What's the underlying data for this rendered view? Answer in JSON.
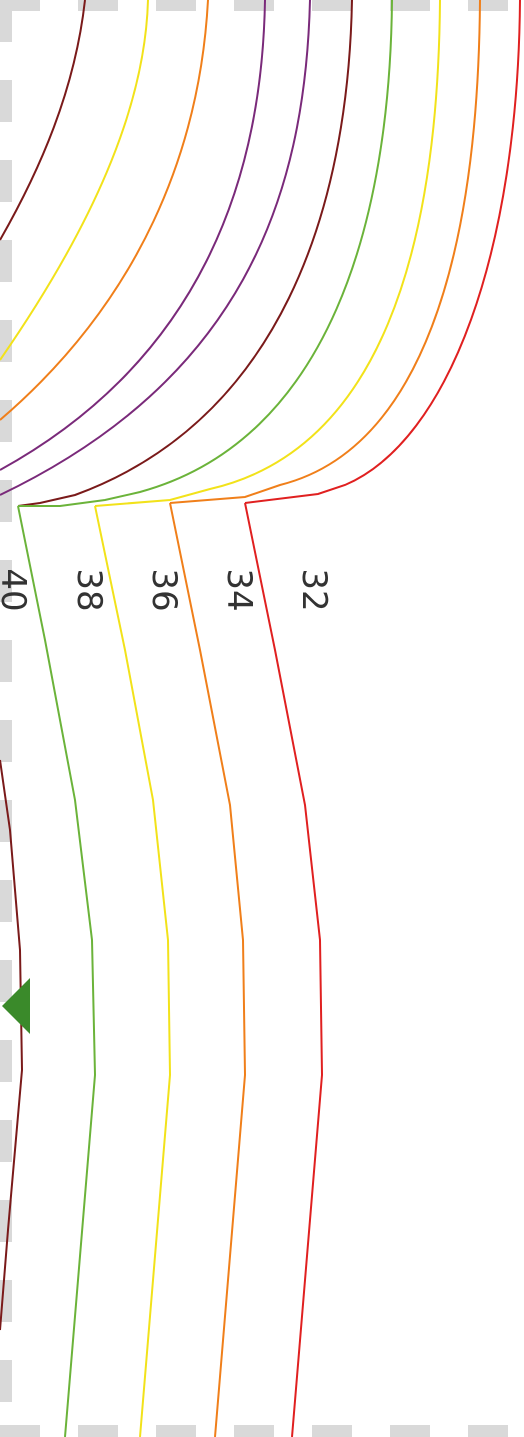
{
  "pattern": {
    "size_labels": [
      "40",
      "38",
      "36",
      "34",
      "32"
    ],
    "size_colors": {
      "40": "#7a1a1a",
      "38": "#6bb33a",
      "36": "#f2e21a",
      "34": "#f07f1a",
      "32": "#e02020"
    },
    "upper_curve_colors": [
      "#7a1a1a",
      "#f2e21a",
      "#f07f1a",
      "#7a2a7a",
      "#7a2a7a",
      "#7a1a1a",
      "#6bb33a",
      "#f2e21a",
      "#f07f1a",
      "#e02020"
    ],
    "marker": {
      "shape": "notch-triangle",
      "color": "#3a8a2a"
    },
    "border": {
      "style": "dashed",
      "color": "#d9d9d9"
    }
  }
}
